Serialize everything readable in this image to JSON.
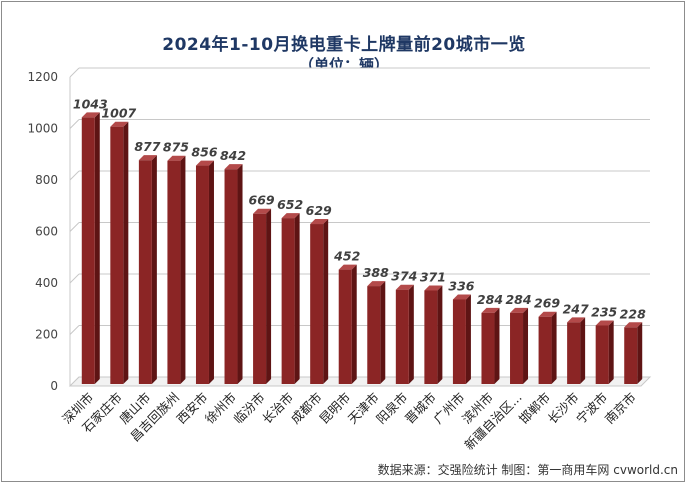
{
  "chart_data": {
    "type": "bar",
    "title": "2024年1-10月换电重卡上牌量前20城市一览",
    "subtitle": "（单位：辆）",
    "categories": [
      "深圳市",
      "石家庄市",
      "唐山市",
      "昌吉回族州",
      "西安市",
      "徐州市",
      "临汾市",
      "长治市",
      "成都市",
      "昆明市",
      "天津市",
      "阳泉市",
      "晋城市",
      "广州市",
      "滨州市",
      "新疆自治区...",
      "邯郸市",
      "长沙市",
      "宁波市",
      "南京市"
    ],
    "values": [
      1043,
      1007,
      877,
      875,
      856,
      842,
      669,
      652,
      629,
      452,
      388,
      374,
      371,
      336,
      284,
      284,
      269,
      247,
      235,
      228
    ],
    "yticks": [
      0,
      200,
      400,
      600,
      800,
      1000,
      1200
    ],
    "ylim": [
      0,
      1200
    ],
    "grid": true,
    "legend": "none",
    "bar_color": "#8b2525"
  },
  "source_text": "数据来源：交强险统计   制图：第一商用车网 cvworld.cn"
}
